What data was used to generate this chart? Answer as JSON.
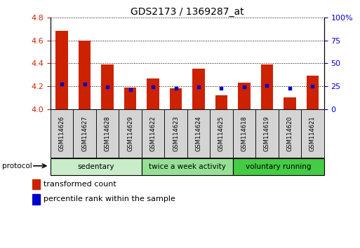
{
  "title": "GDS2173 / 1369287_at",
  "samples": [
    "GSM114626",
    "GSM114627",
    "GSM114628",
    "GSM114629",
    "GSM114622",
    "GSM114623",
    "GSM114624",
    "GSM114625",
    "GSM114618",
    "GSM114619",
    "GSM114620",
    "GSM114621"
  ],
  "transformed_count": [
    4.68,
    4.6,
    4.39,
    4.19,
    4.27,
    4.18,
    4.35,
    4.12,
    4.23,
    4.39,
    4.1,
    4.29
  ],
  "percentile_rank": [
    27,
    27,
    24,
    21,
    24,
    23,
    24,
    23,
    24,
    26,
    23,
    25
  ],
  "groups": [
    {
      "label": "sedentary",
      "start": 0,
      "end": 4,
      "color": "#c8edc8"
    },
    {
      "label": "twice a week activity",
      "start": 4,
      "end": 8,
      "color": "#96e096"
    },
    {
      "label": "voluntary running",
      "start": 8,
      "end": 12,
      "color": "#44cc44"
    }
  ],
  "ylim": [
    4.0,
    4.8
  ],
  "ylim_right": [
    0,
    100
  ],
  "yticks_left": [
    4.0,
    4.2,
    4.4,
    4.6,
    4.8
  ],
  "yticks_right": [
    0,
    25,
    50,
    75,
    100
  ],
  "bar_color": "#cc2200",
  "dot_color": "#0000cc",
  "grid_color": "#000000",
  "left_tick_color": "#cc2200",
  "right_tick_color": "#0000cc",
  "bar_width": 0.55,
  "figsize": [
    5.13,
    3.54
  ],
  "dpi": 100
}
